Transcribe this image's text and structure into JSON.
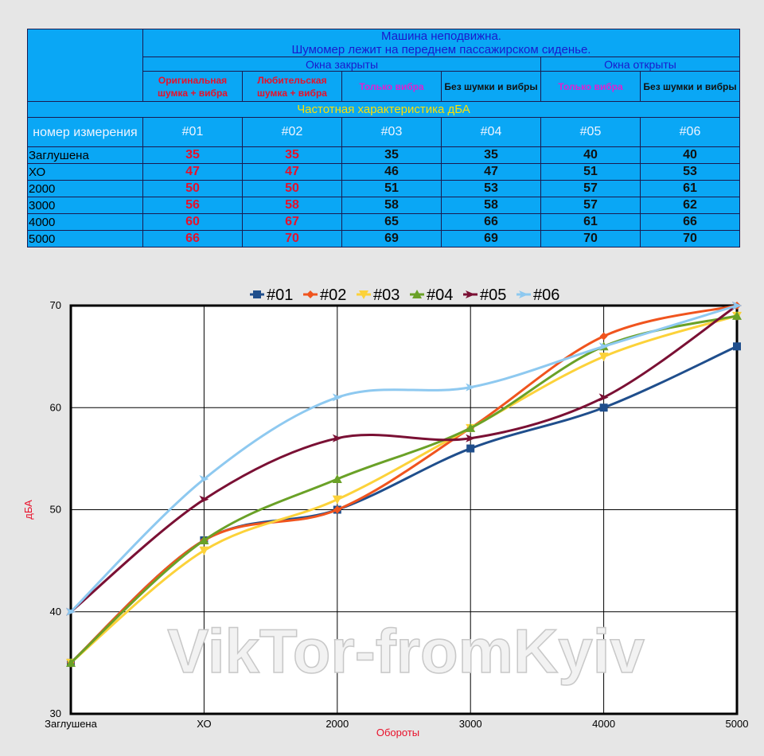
{
  "table": {
    "title_line1": "Машина неподвижна.",
    "title_line2": "Шумомер лежит на переднем пассажирском сиденье.",
    "group_closed": "Окна закрыты",
    "group_open": "Окна открыты",
    "sub_headers": [
      {
        "text": "Оригинальная шумка + вибра",
        "color": "#e8102a"
      },
      {
        "text": "Любительская шумка + вибра",
        "color": "#e8102a"
      },
      {
        "text": "Только вибра",
        "color": "#e020d0"
      },
      {
        "text": "Без шумки и вибры",
        "color": "#111111"
      },
      {
        "text": "Только вибра",
        "color": "#e020d0"
      },
      {
        "text": "Без шумки и вибры",
        "color": "#111111"
      }
    ],
    "freq_label": "Частотная характеристика дБА",
    "row_header_label": "номер измерения",
    "col_ids": [
      "#01",
      "#02",
      "#03",
      "#04",
      "#05",
      "#06"
    ],
    "rows": [
      {
        "label": "Заглушена",
        "values": [
          "35",
          "35",
          "35",
          "35",
          "40",
          "40"
        ]
      },
      {
        "label": "ХО",
        "values": [
          "47",
          "47",
          "46",
          "47",
          "51",
          "53"
        ]
      },
      {
        "label": "2000",
        "values": [
          "50",
          "50",
          "51",
          "53",
          "57",
          "61"
        ]
      },
      {
        "label": "3000",
        "values": [
          "56",
          "58",
          "58",
          "58",
          "57",
          "62"
        ]
      },
      {
        "label": "4000",
        "values": [
          "60",
          "67",
          "65",
          "66",
          "61",
          "66"
        ]
      },
      {
        "label": "5000",
        "values": [
          "66",
          "70",
          "69",
          "69",
          "70",
          "70"
        ]
      }
    ],
    "red_value_columns": [
      0,
      1
    ]
  },
  "chart_data": {
    "type": "line",
    "categories": [
      "Заглушена",
      "ХО",
      "2000",
      "3000",
      "4000",
      "5000"
    ],
    "series": [
      {
        "name": "#01",
        "values": [
          35,
          47,
          50,
          56,
          60,
          66
        ],
        "color": "#1f4e8c",
        "marker": "square"
      },
      {
        "name": "#02",
        "values": [
          35,
          47,
          50,
          58,
          67,
          70
        ],
        "color": "#f0541e",
        "marker": "diamond"
      },
      {
        "name": "#03",
        "values": [
          35,
          46,
          51,
          58,
          65,
          69
        ],
        "color": "#fcd23a",
        "marker": "triangle-down"
      },
      {
        "name": "#04",
        "values": [
          35,
          47,
          53,
          58,
          66,
          69
        ],
        "color": "#6aa127",
        "marker": "triangle"
      },
      {
        "name": "#05",
        "values": [
          40,
          51,
          57,
          57,
          61,
          70
        ],
        "color": "#7a1034",
        "marker": "arrow"
      },
      {
        "name": "#06",
        "values": [
          40,
          53,
          61,
          62,
          66,
          70
        ],
        "color": "#8ec9f0",
        "marker": "arrow"
      }
    ],
    "xlabel": "Обороты",
    "ylabel": "дБА",
    "ylim": [
      30,
      70
    ],
    "yticks": [
      30,
      40,
      50,
      60,
      70
    ],
    "grid": true,
    "smooth": true,
    "legend_position": "top"
  },
  "watermark": "VikTor-fromKyiv"
}
